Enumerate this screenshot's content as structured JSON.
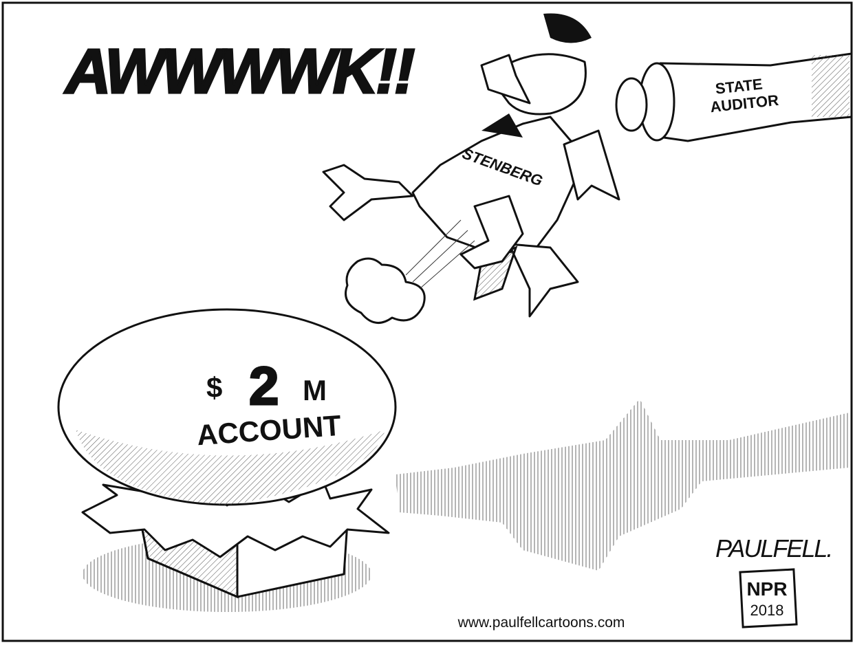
{
  "exclamation": "AWWWWK!!",
  "chicken": {
    "label": "STENBERG"
  },
  "arm": {
    "label_lines": [
      "STATE",
      "AUDITOR"
    ]
  },
  "egg": {
    "amount_parts": [
      "$",
      "2",
      "M"
    ],
    "label": "ACCOUNT"
  },
  "signature": "PAULFELL.",
  "stamp": {
    "publisher": "NPR",
    "year": "2018"
  },
  "website": "www.paulfellcartoons.com"
}
